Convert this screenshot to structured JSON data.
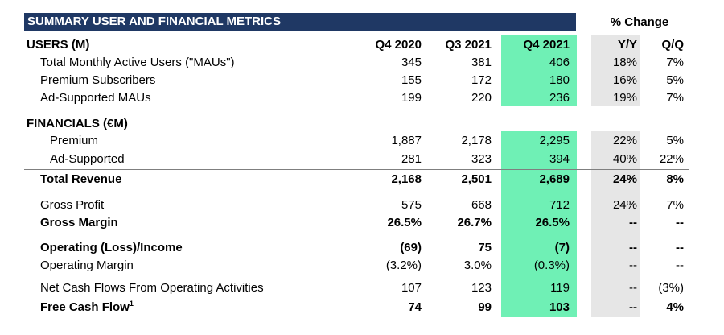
{
  "title": "SUMMARY USER AND FINANCIAL METRICS",
  "pct_change_header": "% Change",
  "columns": {
    "q4_2020": "Q4 2020",
    "q3_2021": "Q3 2021",
    "q4_2021": "Q4 2021",
    "yy": "Y/Y",
    "qq": "Q/Q"
  },
  "users_header": "USERS (M)",
  "financials_header": "FINANCIALS (€M)",
  "rows": {
    "maus": {
      "label": "Total Monthly Active Users (\"MAUs\")",
      "q4_2020": "345",
      "q3_2021": "381",
      "q4_2021": "406",
      "yy": "18%",
      "qq": "7%"
    },
    "premium_subs": {
      "label": "Premium Subscribers",
      "q4_2020": "155",
      "q3_2021": "172",
      "q4_2021": "180",
      "yy": "16%",
      "qq": "5%"
    },
    "ad_maus": {
      "label": "Ad-Supported MAUs",
      "q4_2020": "199",
      "q3_2021": "220",
      "q4_2021": "236",
      "yy": "19%",
      "qq": "7%"
    },
    "premium_rev": {
      "label": "Premium",
      "q4_2020": "1,887",
      "q3_2021": "2,178",
      "q4_2021": "2,295",
      "yy": "22%",
      "qq": "5%"
    },
    "ad_rev": {
      "label": "Ad-Supported",
      "q4_2020": "281",
      "q3_2021": "323",
      "q4_2021": "394",
      "yy": "40%",
      "qq": "22%"
    },
    "total_revenue": {
      "label": "Total Revenue",
      "q4_2020": "2,168",
      "q3_2021": "2,501",
      "q4_2021": "2,689",
      "yy": "24%",
      "qq": "8%"
    },
    "gross_profit": {
      "label": "Gross Profit",
      "q4_2020": "575",
      "q3_2021": "668",
      "q4_2021": "712",
      "yy": "24%",
      "qq": "7%"
    },
    "gross_margin": {
      "label": "Gross Margin",
      "q4_2020": "26.5%",
      "q3_2021": "26.7%",
      "q4_2021": "26.5%",
      "yy": "--",
      "qq": "--"
    },
    "op_income": {
      "label": "Operating (Loss)/Income",
      "q4_2020": "(69)",
      "q3_2021": "75",
      "q4_2021": "(7)",
      "yy": "--",
      "qq": "--"
    },
    "op_margin": {
      "label": "Operating Margin",
      "q4_2020": "(3.2%)",
      "q3_2021": "3.0%",
      "q4_2021": "(0.3%)",
      "yy": "--",
      "qq": "--"
    },
    "net_cash": {
      "label": "Net Cash Flows From Operating Activities",
      "q4_2020": "107",
      "q3_2021": "123",
      "q4_2021": "119",
      "yy": "--",
      "qq": "(3%)"
    },
    "fcf": {
      "label": "Free Cash Flow",
      "footnote": "1",
      "q4_2020": "74",
      "q3_2021": "99",
      "q4_2021": "103",
      "yy": "--",
      "qq": "4%"
    }
  },
  "colors": {
    "title_bg": "#1f3864",
    "highlight": "#6ff0b5",
    "shade": "#e6e6e6"
  }
}
